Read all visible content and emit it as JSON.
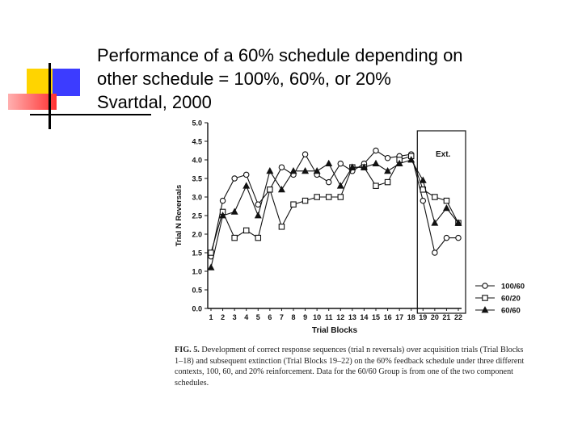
{
  "slide": {
    "title_lines": [
      "Performance of a 60% schedule depending on",
      "other schedule = 100%, 60%, or 20%",
      "Svartdal, 2000"
    ]
  },
  "colors": {
    "accent_yellow": "#ffd400",
    "accent_blue": "#3c3cff",
    "accent_red": "#ff3030",
    "ink": "#111111"
  },
  "chart_data": {
    "type": "line",
    "xlabel": "Trial Blocks",
    "ylabel": "Trial N Reversals",
    "categories": [
      "1",
      "2",
      "3",
      "4",
      "5",
      "6",
      "7",
      "8",
      "9",
      "10",
      "11",
      "12",
      "13",
      "14",
      "15",
      "16",
      "17",
      "18",
      "19",
      "20",
      "21",
      "22"
    ],
    "ylim": [
      0,
      5
    ],
    "yticks": [
      "0.0",
      "0.5",
      "1.0",
      "1.5",
      "2.0",
      "2.5",
      "3.0",
      "3.5",
      "4.0",
      "4.5",
      "5.0"
    ],
    "grid": false,
    "extinction_label": "Ext.",
    "extinction_blocks": [
      19,
      22
    ],
    "legend_position": "bottom-right",
    "series": [
      {
        "name": "100/60",
        "marker": "circle",
        "values": [
          1.4,
          2.9,
          3.5,
          3.6,
          2.8,
          3.2,
          3.8,
          3.6,
          4.15,
          3.6,
          3.4,
          3.9,
          3.7,
          3.9,
          4.25,
          4.05,
          4.1,
          4.15,
          2.9,
          1.5,
          1.9,
          1.9
        ]
      },
      {
        "name": "60/20",
        "marker": "square",
        "values": [
          1.5,
          2.6,
          1.9,
          2.1,
          1.9,
          3.2,
          2.2,
          2.8,
          2.9,
          3.0,
          3.0,
          3.0,
          3.8,
          3.8,
          3.3,
          3.4,
          4.0,
          4.1,
          3.2,
          3.0,
          2.9,
          2.3
        ]
      },
      {
        "name": "60/60",
        "marker": "triangle",
        "values": [
          1.1,
          2.5,
          2.6,
          3.3,
          2.5,
          3.7,
          3.2,
          3.7,
          3.7,
          3.7,
          3.9,
          3.3,
          3.8,
          3.8,
          3.9,
          3.7,
          3.9,
          4.0,
          3.45,
          2.3,
          2.7,
          2.3
        ]
      }
    ]
  },
  "caption": {
    "label": "FIG. 5.",
    "text": "Development of correct response sequences (trial n reversals) over acquisition trials (Trial Blocks 1–18) and subsequent extinction (Trial Blocks 19–22) on the 60% feedback schedule under three different contexts, 100, 60, and 20% reinforcement. Data for the 60/60 Group is from one of the two component schedules."
  }
}
